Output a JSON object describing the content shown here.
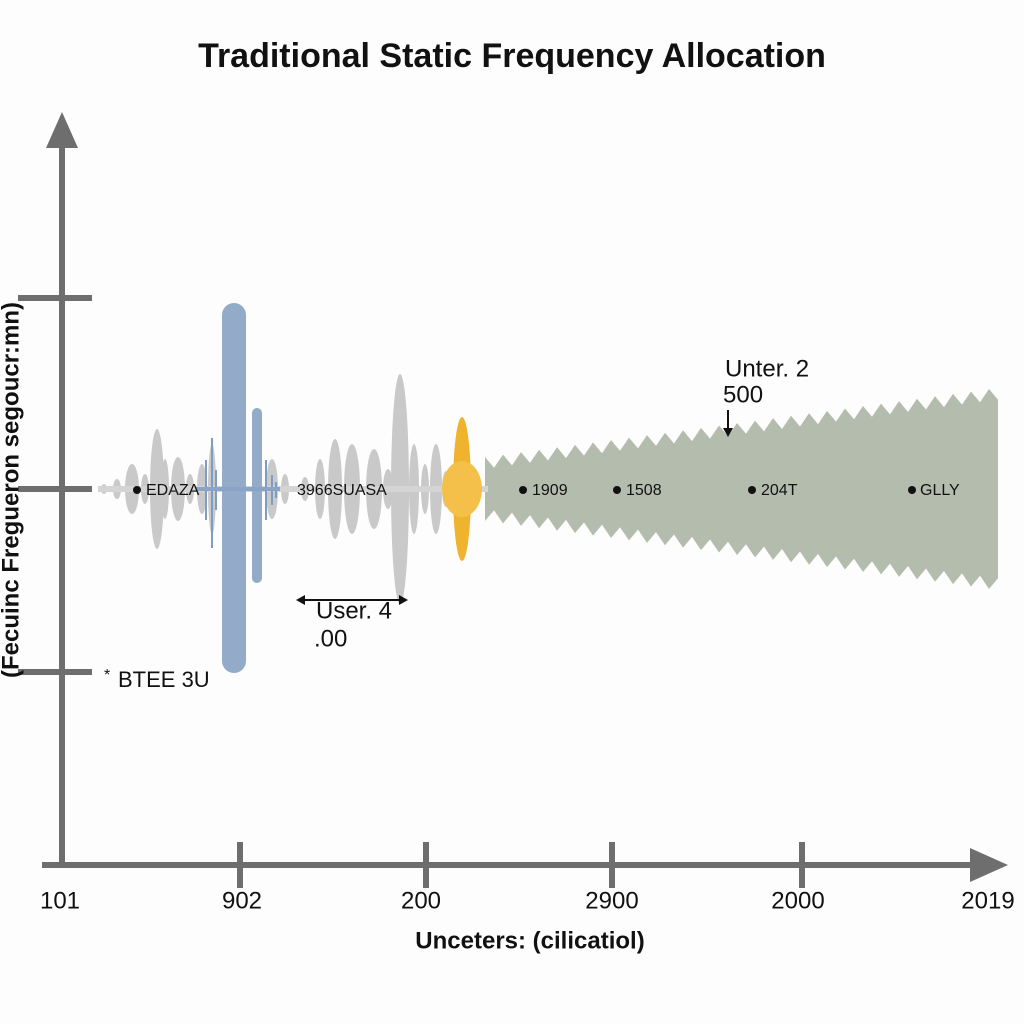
{
  "header": {
    "title": "Traditional Static Frequency Allocation"
  },
  "axes": {
    "y_label": "(Fecuinc Fregueron  segoucr:mn)",
    "x_label": "Unceters: (cilicatiol)",
    "x_ticks": [
      "101",
      "902",
      "200",
      "2900",
      "2000",
      "2019"
    ]
  },
  "signal_labels": [
    "EDAZA",
    "3966SUASA",
    "1909",
    "1508",
    "204T",
    "GLLY"
  ],
  "annotations": [
    {
      "line1": "Unter. 2",
      "line2": "500"
    },
    {
      "line1": "User. 4",
      "line2": ".00"
    },
    {
      "line1": "BTEE 3U"
    }
  ]
}
